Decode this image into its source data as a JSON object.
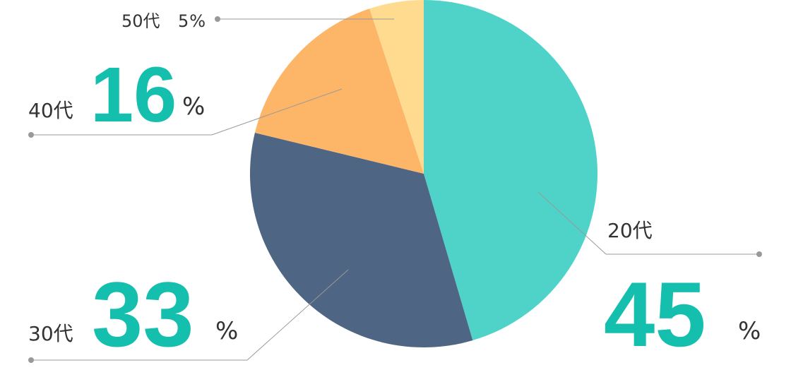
{
  "chart_data": {
    "type": "pie",
    "categories": [
      "20代",
      "30代",
      "40代",
      "50代"
    ],
    "values": [
      45,
      33,
      16,
      5
    ],
    "unit": "%",
    "colors": [
      "#4fd3c9",
      "#4e6584",
      "#fdb568",
      "#fedb8f"
    ]
  }
}
